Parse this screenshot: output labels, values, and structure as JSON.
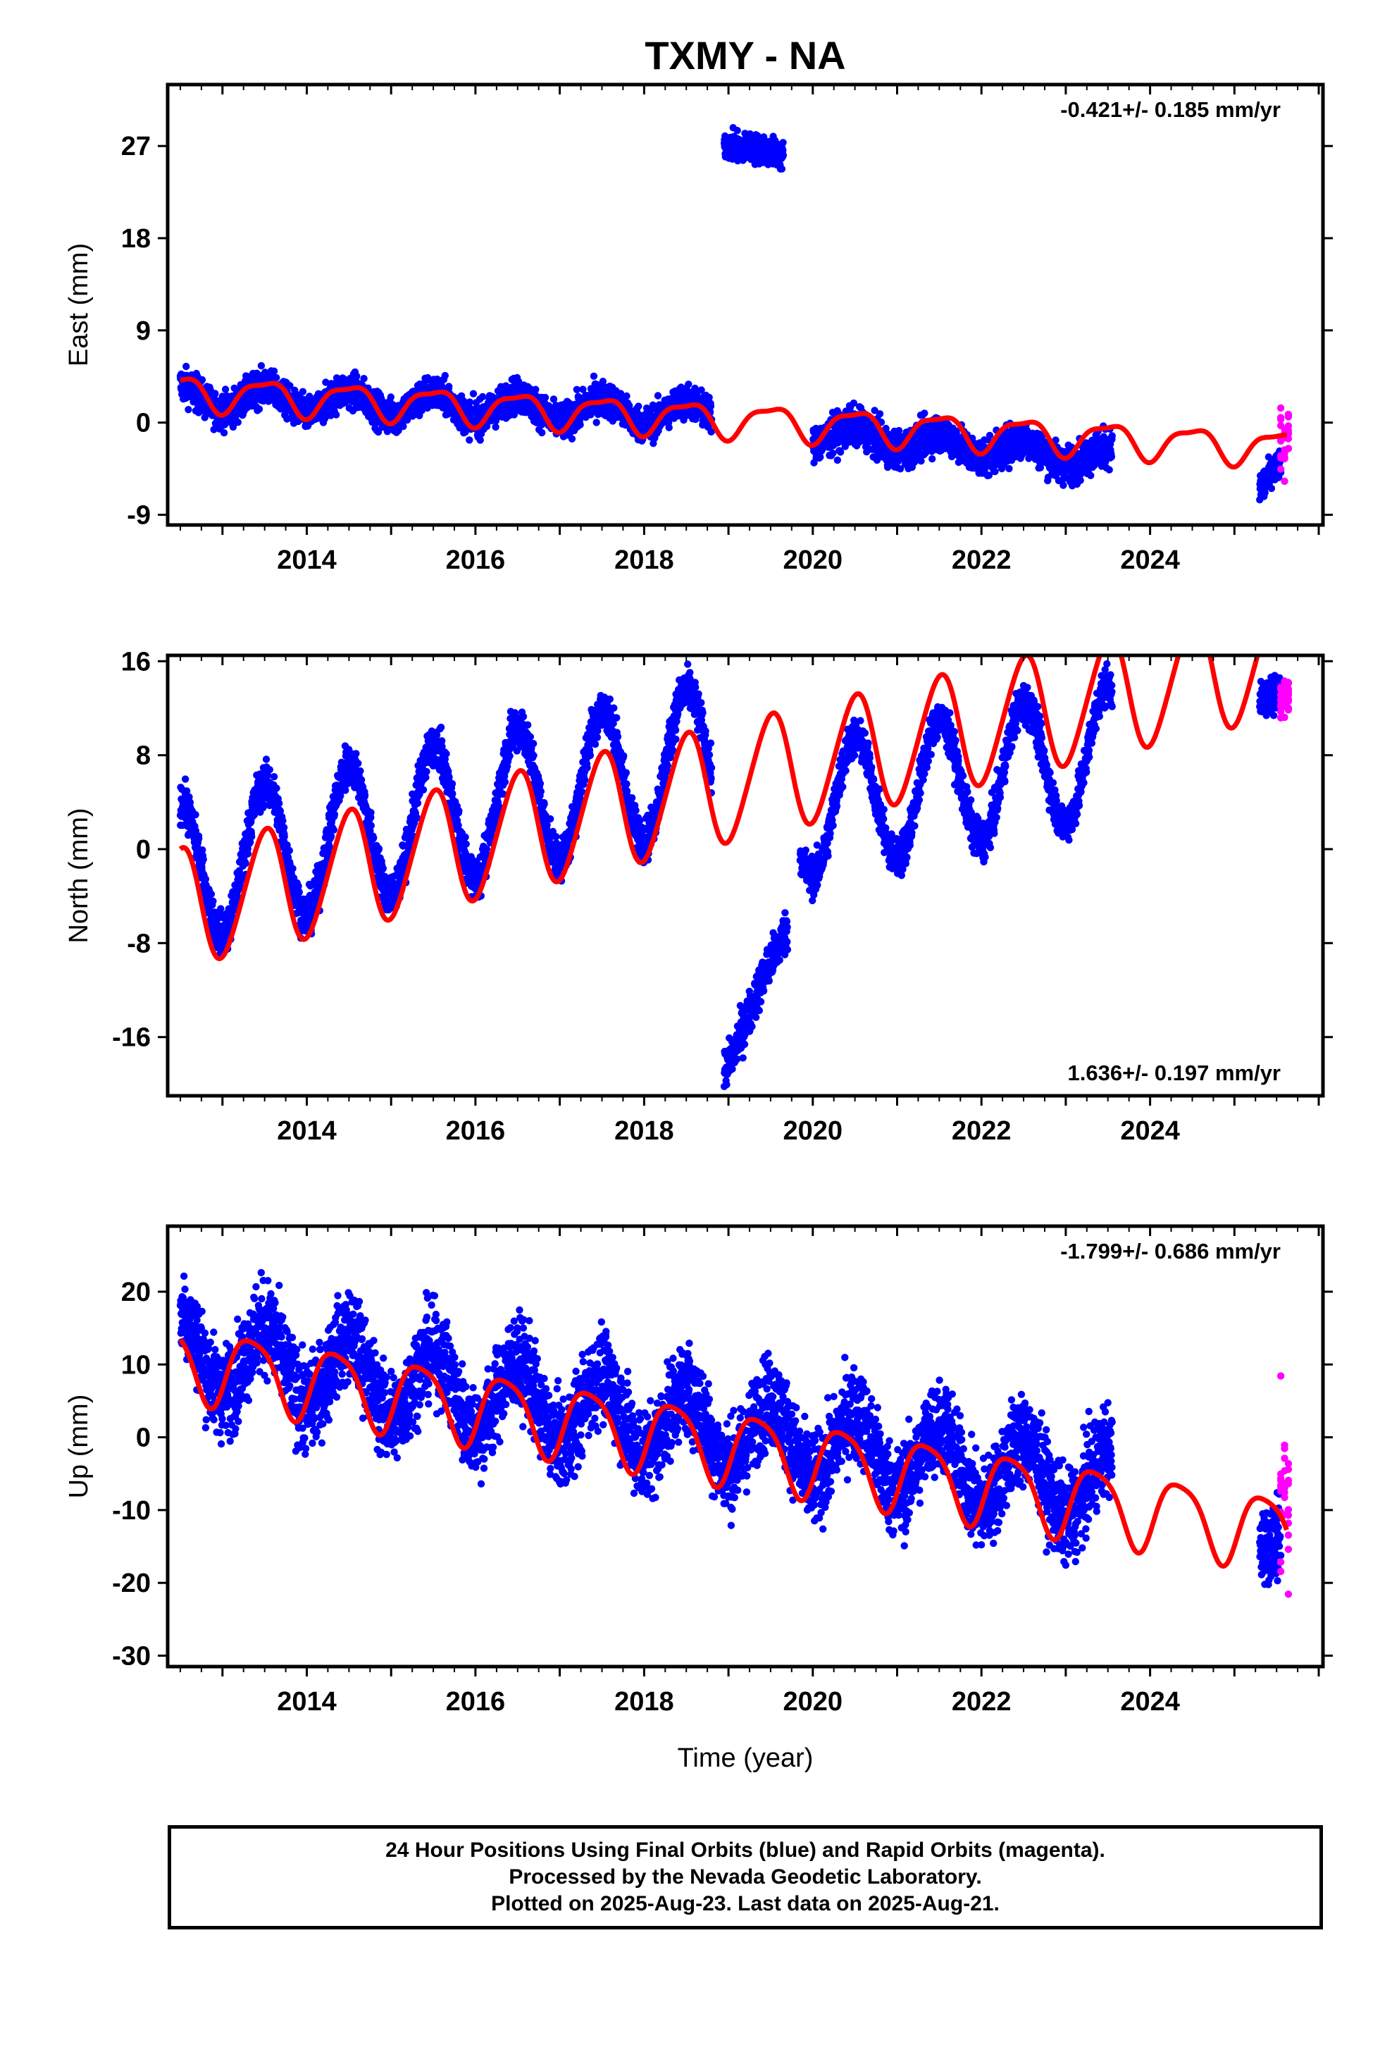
{
  "title": "TXMY - NA",
  "footer": {
    "line1": "24 Hour Positions Using Final Orbits (blue) and Rapid Orbits (magenta).",
    "line2": "Processed by the Nevada Geodetic Laboratory.",
    "line3": "Plotted on 2025-Aug-23. Last data on 2025-Aug-21."
  },
  "colors": {
    "final": "#0000ff",
    "rapid": "#ff00ff",
    "model": "#ff0000",
    "frame": "#000000"
  },
  "chart_data": [
    {
      "type": "scatter",
      "name": "east",
      "ylabel": "East (mm)",
      "xlabel": "",
      "rate_label": "-0.421+/- 0.185 mm/yr",
      "rate_position": "top-right",
      "xlim": [
        2012.35,
        2026.05
      ],
      "ylim": [
        -10,
        33
      ],
      "xticks": [
        2014,
        2016,
        2018,
        2020,
        2022,
        2024
      ],
      "xtick_labels": [
        "2014",
        "2016",
        "2018",
        "2020",
        "2022",
        "2024"
      ],
      "yticks": [
        -9,
        0,
        9,
        18,
        27
      ],
      "ytick_labels": [
        "-9",
        "0",
        "9",
        "18",
        "27"
      ],
      "final_segments": [
        {
          "start": 2012.5,
          "end": 2018.8,
          "y0": 2.5,
          "y1": 0.8,
          "amp": 1.2,
          "noise": 1.2
        },
        {
          "start": 2018.95,
          "end": 2019.65,
          "y0": 27.5,
          "y1": 25.8,
          "amp": 0.3,
          "noise": 1.0
        },
        {
          "start": 2020.0,
          "end": 2023.55,
          "y0": -1.0,
          "y1": -3.5,
          "amp": 1.0,
          "noise": 1.3
        },
        {
          "start": 2025.3,
          "end": 2025.55,
          "y0": -6.5,
          "y1": -4.0,
          "amp": 0.0,
          "noise": 1.1
        }
      ],
      "rapid_segment": {
        "start": 2025.55,
        "end": 2025.64,
        "y0": -2.5,
        "y1": -1.5,
        "noise": 2.2
      },
      "model": {
        "start": 2012.5,
        "end": 2025.62,
        "offset": 3.0,
        "slope": -0.421,
        "amp_annual": 1.6,
        "phase_annual": 0.25,
        "amp_semi": 0.5,
        "phase_semi": 0.1
      }
    },
    {
      "type": "scatter",
      "name": "north",
      "ylabel": "North (mm)",
      "xlabel": "",
      "rate_label": "1.636+/- 0.197 mm/yr",
      "rate_position": "bottom-right",
      "xlim": [
        2012.35,
        2026.05
      ],
      "ylim": [
        -21,
        16.5
      ],
      "xticks": [
        2014,
        2016,
        2018,
        2020,
        2022,
        2024
      ],
      "xtick_labels": [
        "2014",
        "2016",
        "2018",
        "2020",
        "2022",
        "2024"
      ],
      "yticks": [
        -16,
        -8,
        0,
        8,
        16
      ],
      "ytick_labels": [
        "-16",
        "-8",
        "0",
        "8",
        "16"
      ],
      "final_segments": [
        {
          "start": 2012.5,
          "end": 2018.8,
          "y0": -2.0,
          "y1": 8.0,
          "amp": 6.0,
          "noise": 1.3
        },
        {
          "start": 2018.95,
          "end": 2019.7,
          "y0": -18.5,
          "y1": -7.0,
          "amp": 0.5,
          "noise": 1.3
        },
        {
          "start": 2019.85,
          "end": 2023.55,
          "y0": 3.0,
          "y1": 8.5,
          "amp": 5.5,
          "noise": 1.2
        },
        {
          "start": 2025.3,
          "end": 2025.55,
          "y0": 12.5,
          "y1": 13.5,
          "amp": 0.0,
          "noise": 1.0
        }
      ],
      "rapid_segment": {
        "start": 2025.55,
        "end": 2025.64,
        "y0": 13.5,
        "y1": 12.5,
        "noise": 1.2
      },
      "model": {
        "start": 2012.5,
        "end": 2025.62,
        "offset": -5.0,
        "slope": 1.636,
        "amp_annual": 5.0,
        "phase_annual": 0.25,
        "amp_semi": 0.5,
        "phase_semi": 0.0
      }
    },
    {
      "type": "scatter",
      "name": "up",
      "ylabel": "Up (mm)",
      "xlabel": "Time (year)",
      "rate_label": "-1.799+/- 0.686 mm/yr",
      "rate_position": "top-right",
      "xlim": [
        2012.35,
        2026.05
      ],
      "ylim": [
        -31.5,
        29
      ],
      "xticks": [
        2014,
        2016,
        2018,
        2020,
        2022,
        2024
      ],
      "xtick_labels": [
        "2014",
        "2016",
        "2018",
        "2020",
        "2022",
        "2024"
      ],
      "yticks": [
        -30,
        -20,
        -10,
        0,
        10,
        20
      ],
      "ytick_labels": [
        "-30",
        "-20",
        "-10",
        "0",
        "10",
        "20"
      ],
      "final_segments": [
        {
          "start": 2012.5,
          "end": 2023.55,
          "y0": 12.0,
          "y1": -7.0,
          "amp": 5.0,
          "noise": 4.5
        },
        {
          "start": 2025.3,
          "end": 2025.55,
          "y0": -15.0,
          "y1": -14.0,
          "amp": 0.0,
          "noise": 3.5
        }
      ],
      "rapid_segment": {
        "start": 2025.55,
        "end": 2025.64,
        "y0": -10.0,
        "y1": -8.0,
        "noise": 10.0
      },
      "model": {
        "start": 2012.5,
        "end": 2025.62,
        "offset": 10.5,
        "slope": -1.799,
        "amp_annual": 5.0,
        "phase_annual": 0.1,
        "amp_semi": 1.0,
        "phase_semi": 0.0
      }
    }
  ]
}
